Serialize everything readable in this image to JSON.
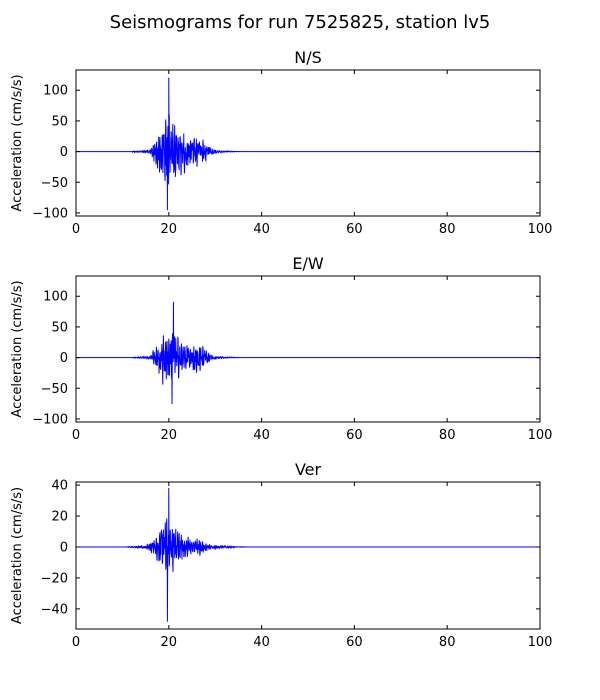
{
  "chart_data": {
    "type": "line",
    "title": "Seismograms for run 7525825, station lv5",
    "series_color": "#0000ff",
    "panels": [
      {
        "title": "N/S",
        "ylabel": "Acceleration (cm/s/s)",
        "xlim": [
          0,
          100
        ],
        "ylim": [
          -105,
          133
        ],
        "xticks": [
          0,
          20,
          40,
          60,
          80,
          100
        ],
        "yticks": [
          -100,
          -50,
          0,
          50,
          100
        ],
        "onset": 16,
        "peak_time": 20,
        "decay_end": 34,
        "peak_pos": 120,
        "peak_neg": -95,
        "envelope": [
          [
            12,
            2
          ],
          [
            16,
            5
          ],
          [
            17,
            40
          ],
          [
            18,
            70
          ],
          [
            19,
            95
          ],
          [
            20,
            115
          ],
          [
            21,
            85
          ],
          [
            22,
            70
          ],
          [
            23,
            60
          ],
          [
            24,
            50
          ],
          [
            25,
            45
          ],
          [
            26,
            45
          ],
          [
            27,
            40
          ],
          [
            28,
            30
          ],
          [
            29,
            15
          ],
          [
            30,
            5
          ],
          [
            33,
            2
          ],
          [
            36,
            0
          ]
        ]
      },
      {
        "title": "E/W",
        "ylabel": "Acceleration (cm/s/s)",
        "xlim": [
          0,
          100
        ],
        "ylim": [
          -105,
          133
        ],
        "xticks": [
          0,
          20,
          40,
          60,
          80,
          100
        ],
        "yticks": [
          -100,
          -50,
          0,
          50,
          100
        ],
        "onset": 16,
        "peak_time": 21,
        "decay_end": 34,
        "peak_pos": 90,
        "peak_neg": -75,
        "envelope": [
          [
            12,
            1
          ],
          [
            16,
            5
          ],
          [
            17,
            30
          ],
          [
            18,
            55
          ],
          [
            19,
            80
          ],
          [
            20,
            85
          ],
          [
            21,
            80
          ],
          [
            22,
            60
          ],
          [
            23,
            50
          ],
          [
            24,
            40
          ],
          [
            25,
            40
          ],
          [
            26,
            40
          ],
          [
            27,
            35
          ],
          [
            28,
            25
          ],
          [
            29,
            10
          ],
          [
            30,
            5
          ],
          [
            33,
            2
          ],
          [
            36,
            0
          ]
        ]
      },
      {
        "title": "Ver",
        "ylabel": "Acceleration (cm/s/s)",
        "xlim": [
          0,
          100
        ],
        "ylim": [
          -53,
          42
        ],
        "xticks": [
          0,
          20,
          40,
          60,
          80,
          100
        ],
        "yticks": [
          -40,
          -20,
          0,
          20,
          40
        ],
        "onset": 13,
        "peak_time": 20,
        "decay_end": 35,
        "peak_pos": 38,
        "peak_neg": -48,
        "envelope": [
          [
            11,
            0.5
          ],
          [
            13,
            1.5
          ],
          [
            15,
            2
          ],
          [
            17,
            10
          ],
          [
            18,
            20
          ],
          [
            19,
            30
          ],
          [
            20,
            36
          ],
          [
            21,
            30
          ],
          [
            22,
            22
          ],
          [
            23,
            15
          ],
          [
            24,
            12
          ],
          [
            25,
            10
          ],
          [
            26,
            10
          ],
          [
            27,
            8
          ],
          [
            28,
            5
          ],
          [
            29,
            3
          ],
          [
            31,
            2
          ],
          [
            33,
            1.5
          ],
          [
            35,
            0.5
          ],
          [
            38,
            0
          ]
        ]
      }
    ]
  }
}
